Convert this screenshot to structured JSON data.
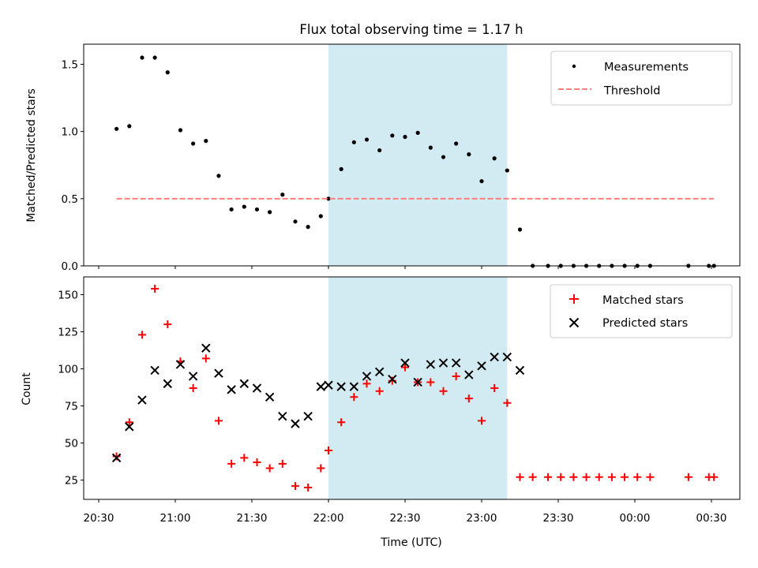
{
  "chart_data": {
    "title": "Flux total observing time = 1.17 h",
    "xlabel": "Time (UTC)",
    "x_tick_labels": [
      "20:30",
      "21:00",
      "21:30",
      "22:00",
      "22:30",
      "23:00",
      "23:30",
      "00:00",
      "00:30"
    ],
    "shaded_interval": {
      "start": "22:00",
      "end": "23:10",
      "color": "#add8e6"
    },
    "panels": [
      {
        "type": "scatter",
        "ylabel": "Matched/Predicted stars",
        "ylim": [
          0,
          1.65
        ],
        "y_ticks": [
          0.0,
          0.5,
          1.0,
          1.5
        ],
        "y_tick_labels": [
          "0.0",
          "0.5",
          "1.0",
          "1.5"
        ],
        "legend_position": "top-right",
        "series": [
          {
            "name": "Measurements",
            "marker": "dot",
            "color": "#000000",
            "x": [
              "20:37",
              "20:42",
              "20:47",
              "20:52",
              "20:57",
              "21:02",
              "21:07",
              "21:12",
              "21:17",
              "21:22",
              "21:27",
              "21:32",
              "21:37",
              "21:42",
              "21:47",
              "21:52",
              "21:57",
              "22:00",
              "22:05",
              "22:10",
              "22:15",
              "22:20",
              "22:25",
              "22:30",
              "22:35",
              "22:40",
              "22:45",
              "22:50",
              "22:55",
              "23:00",
              "23:05",
              "23:10",
              "23:15",
              "23:20",
              "23:26",
              "23:31",
              "23:36",
              "23:41",
              "23:46",
              "23:51",
              "23:56",
              "00:01",
              "00:06",
              "00:21",
              "00:29",
              "00:31"
            ],
            "y": [
              1.02,
              1.04,
              1.55,
              1.55,
              1.44,
              1.01,
              0.91,
              0.93,
              0.67,
              0.42,
              0.44,
              0.42,
              0.4,
              0.53,
              0.33,
              0.29,
              0.37,
              0.5,
              0.72,
              0.92,
              0.94,
              0.86,
              0.97,
              0.96,
              0.99,
              0.88,
              0.81,
              0.91,
              0.83,
              0.63,
              0.8,
              0.71,
              0.27,
              0,
              0,
              0,
              0,
              0,
              0,
              0,
              0,
              0,
              0,
              0,
              0,
              0
            ]
          },
          {
            "name": "Threshold",
            "line": "dashed",
            "color": "#ff7f7f",
            "x": [
              "20:37",
              "00:31"
            ],
            "y": [
              0.5,
              0.5
            ]
          }
        ]
      },
      {
        "type": "scatter",
        "ylabel": "Count",
        "ylim": [
          12,
          162
        ],
        "y_ticks": [
          25,
          50,
          75,
          100,
          125,
          150
        ],
        "y_tick_labels": [
          "25",
          "50",
          "75",
          "100",
          "125",
          "150"
        ],
        "legend_position": "top-right",
        "series": [
          {
            "name": "Matched stars",
            "marker": "plus",
            "color": "#ff0000",
            "x": [
              "20:37",
              "20:42",
              "20:47",
              "20:52",
              "20:57",
              "21:02",
              "21:07",
              "21:12",
              "21:17",
              "21:22",
              "21:27",
              "21:32",
              "21:37",
              "21:42",
              "21:47",
              "21:52",
              "21:57",
              "22:00",
              "22:05",
              "22:10",
              "22:15",
              "22:20",
              "22:25",
              "22:30",
              "22:35",
              "22:40",
              "22:45",
              "22:50",
              "22:55",
              "23:00",
              "23:05",
              "23:10",
              "23:15",
              "23:20",
              "23:26",
              "23:31",
              "23:36",
              "23:41",
              "23:46",
              "23:51",
              "23:56",
              "00:01",
              "00:06",
              "00:21",
              "00:29",
              "00:31"
            ],
            "y": [
              41,
              64,
              123,
              154,
              130,
              105,
              87,
              107,
              65,
              36,
              40,
              37,
              33,
              36,
              21,
              20,
              33,
              45,
              64,
              81,
              90,
              85,
              92,
              101,
              91,
              91,
              85,
              95,
              80,
              65,
              87,
              77,
              27,
              27,
              27,
              27,
              27,
              27,
              27,
              27,
              27,
              27,
              27,
              27,
              27,
              27
            ]
          },
          {
            "name": "Predicted stars",
            "marker": "x",
            "color": "#000000",
            "x": [
              "20:37",
              "20:42",
              "20:47",
              "20:52",
              "20:57",
              "21:02",
              "21:07",
              "21:12",
              "21:17",
              "21:22",
              "21:27",
              "21:32",
              "21:37",
              "21:42",
              "21:47",
              "21:52",
              "21:57",
              "22:00",
              "22:05",
              "22:10",
              "22:15",
              "22:20",
              "22:25",
              "22:30",
              "22:35",
              "22:40",
              "22:45",
              "22:50",
              "22:55",
              "23:00",
              "23:05",
              "23:10",
              "23:15"
            ],
            "y": [
              40,
              61,
              79,
              99,
              90,
              103,
              95,
              114,
              97,
              86,
              90,
              87,
              81,
              68,
              63,
              68,
              88,
              89,
              88,
              88,
              95,
              98,
              93,
              104,
              91,
              103,
              104,
              104,
              96,
              102,
              108,
              108,
              99
            ]
          }
        ]
      }
    ]
  }
}
